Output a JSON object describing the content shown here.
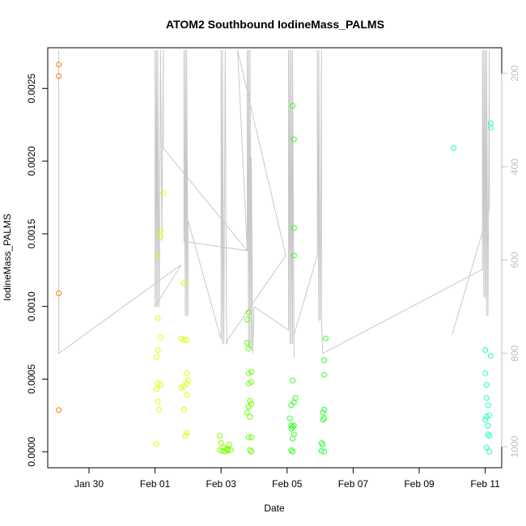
{
  "chart_data": {
    "type": "scatter",
    "title": "ATOM2 Southbound IodineMass_PALMS",
    "xlabel": "Date",
    "ylabel": "IodineMass_PALMS",
    "x_ticks": [
      "Jan 30",
      "Feb 01",
      "Feb 03",
      "Feb 05",
      "Feb 07",
      "Feb 09",
      "Feb 11"
    ],
    "y_ticks": [
      "0.0000",
      "0.0005",
      "0.0010",
      "0.0015",
      "0.0020",
      "0.0025"
    ],
    "y2_ticks": [
      "200",
      "400",
      "600",
      "800",
      "1000"
    ],
    "xlim": [
      "2017-01-28 18:00",
      "2017-02-11 12:00"
    ],
    "ylim": [
      -0.00011,
      0.00278
    ],
    "y2lim": [
      1045,
      145
    ],
    "grid": false,
    "points": [
      {
        "x": "2017-01-29 02:00",
        "y": 0.002664,
        "color": "#ff8000"
      },
      {
        "x": "2017-01-29 02:00",
        "y": 0.002585,
        "color": "#ff8000"
      },
      {
        "x": "2017-01-29 02:00",
        "y": 0.00109,
        "color": "#ff8000"
      },
      {
        "x": "2017-01-29 02:00",
        "y": 0.000287,
        "color": "#ff8000"
      },
      {
        "x": "2017-02-01 02:00",
        "y": 0.0007,
        "color": "#e6ff00"
      },
      {
        "x": "2017-02-01 01:00",
        "y": 0.00065,
        "color": "#e6ff00"
      },
      {
        "x": "2017-02-01 04:00",
        "y": 0.000785,
        "color": "#e6ff00"
      },
      {
        "x": "2017-02-01 02:00",
        "y": 0.00092,
        "color": "#e6ff00"
      },
      {
        "x": "2017-02-01 02:00",
        "y": 0.00135,
        "color": "#e6ff00"
      },
      {
        "x": "2017-02-01 04:00",
        "y": 0.00152,
        "color": "#e6ff00"
      },
      {
        "x": "2017-02-01 04:00",
        "y": 0.00148,
        "color": "#e6ff00"
      },
      {
        "x": "2017-02-01 06:00",
        "y": 0.00178,
        "color": "#e6ff00"
      },
      {
        "x": "2017-02-01 02:00",
        "y": 0.00047,
        "color": "#e6ff00"
      },
      {
        "x": "2017-02-01 04:00",
        "y": 0.00046,
        "color": "#e6ff00"
      },
      {
        "x": "2017-02-01 01:00",
        "y": 0.00043,
        "color": "#e6ff00"
      },
      {
        "x": "2017-02-01 02:00",
        "y": 0.000345,
        "color": "#e6ff00"
      },
      {
        "x": "2017-02-01 03:00",
        "y": 0.00029,
        "color": "#e6ff00"
      },
      {
        "x": "2017-02-01 01:00",
        "y": 5.5e-05,
        "color": "#e6ff00"
      },
      {
        "x": "2017-02-01 19:00",
        "y": 0.00078,
        "color": "#d4ff00"
      },
      {
        "x": "2017-02-01 21:00",
        "y": 0.00077,
        "color": "#d4ff00"
      },
      {
        "x": "2017-02-01 23:00",
        "y": 0.00077,
        "color": "#d4ff00"
      },
      {
        "x": "2017-02-01 21:00",
        "y": 0.00116,
        "color": "#d4ff00"
      },
      {
        "x": "2017-02-01 23:00",
        "y": 0.00054,
        "color": "#d4ff00"
      },
      {
        "x": "2017-02-02 00:00",
        "y": 0.00049,
        "color": "#d4ff00"
      },
      {
        "x": "2017-02-01 23:00",
        "y": 0.00047,
        "color": "#d4ff00"
      },
      {
        "x": "2017-02-01 21:00",
        "y": 0.00045,
        "color": "#d4ff00"
      },
      {
        "x": "2017-02-01 19:00",
        "y": 0.00044,
        "color": "#d4ff00"
      },
      {
        "x": "2017-02-01 23:00",
        "y": 0.00039,
        "color": "#d4ff00"
      },
      {
        "x": "2017-02-01 21:00",
        "y": 0.00029,
        "color": "#d4ff00"
      },
      {
        "x": "2017-02-01 23:00",
        "y": 0.00013,
        "color": "#d4ff00"
      },
      {
        "x": "2017-02-01 22:00",
        "y": 0.00011,
        "color": "#d4ff00"
      },
      {
        "x": "2017-02-02 23:00",
        "y": 0.00011,
        "color": "#80ff00"
      },
      {
        "x": "2017-02-03 00:00",
        "y": 6e-05,
        "color": "#80ff00"
      },
      {
        "x": "2017-02-03 06:00",
        "y": 5e-05,
        "color": "#80ff00"
      },
      {
        "x": "2017-02-03 02:00",
        "y": 3e-05,
        "color": "#80ff00"
      },
      {
        "x": "2017-02-03 04:00",
        "y": 2e-05,
        "color": "#80ff00"
      },
      {
        "x": "2017-02-03 05:00",
        "y": 1.5e-05,
        "color": "#80ff00"
      },
      {
        "x": "2017-02-02 23:00",
        "y": 1e-05,
        "color": "#80ff00"
      },
      {
        "x": "2017-02-03 01:00",
        "y": 5e-06,
        "color": "#80ff00"
      },
      {
        "x": "2017-02-03 03:00",
        "y": 0.0,
        "color": "#80ff00"
      },
      {
        "x": "2017-02-03 05:00",
        "y": 8e-06,
        "color": "#80ff00"
      },
      {
        "x": "2017-02-03 07:00",
        "y": 1.2e-05,
        "color": "#80ff00"
      },
      {
        "x": "2017-02-03 20:00",
        "y": 0.00096,
        "color": "#66ff00"
      },
      {
        "x": "2017-02-03 19:00",
        "y": 0.00091,
        "color": "#66ff00"
      },
      {
        "x": "2017-02-03 19:00",
        "y": 0.00075,
        "color": "#66ff00"
      },
      {
        "x": "2017-02-03 20:00",
        "y": 0.00071,
        "color": "#66ff00"
      },
      {
        "x": "2017-02-03 22:00",
        "y": 0.00055,
        "color": "#66ff00"
      },
      {
        "x": "2017-02-03 20:00",
        "y": 0.00054,
        "color": "#66ff00"
      },
      {
        "x": "2017-02-03 22:00",
        "y": 0.00048,
        "color": "#66ff00"
      },
      {
        "x": "2017-02-03 20:00",
        "y": 0.00047,
        "color": "#66ff00"
      },
      {
        "x": "2017-02-03 21:00",
        "y": 0.00035,
        "color": "#66ff00"
      },
      {
        "x": "2017-02-03 22:00",
        "y": 0.00033,
        "color": "#66ff00"
      },
      {
        "x": "2017-02-03 20:00",
        "y": 0.00031,
        "color": "#66ff00"
      },
      {
        "x": "2017-02-03 19:00",
        "y": 0.00027,
        "color": "#66ff00"
      },
      {
        "x": "2017-02-03 21:00",
        "y": 0.00024,
        "color": "#66ff00"
      },
      {
        "x": "2017-02-03 22:00",
        "y": 0.0001,
        "color": "#66ff00"
      },
      {
        "x": "2017-02-03 20:00",
        "y": 0.0001,
        "color": "#66ff00"
      },
      {
        "x": "2017-02-03 21:00",
        "y": 1e-05,
        "color": "#66ff00"
      },
      {
        "x": "2017-02-03 22:00",
        "y": 0.0,
        "color": "#66ff00"
      },
      {
        "x": "2017-02-05 04:00",
        "y": 0.00238,
        "color": "#33ff1a"
      },
      {
        "x": "2017-02-05 05:00",
        "y": 0.00215,
        "color": "#33ff1a"
      },
      {
        "x": "2017-02-05 05:00",
        "y": 0.00154,
        "color": "#33ff1a"
      },
      {
        "x": "2017-02-05 05:00",
        "y": 0.00135,
        "color": "#33ff1a"
      },
      {
        "x": "2017-02-05 04:00",
        "y": 0.00049,
        "color": "#33ff1a"
      },
      {
        "x": "2017-02-05 06:00",
        "y": 0.00037,
        "color": "#33ff1a"
      },
      {
        "x": "2017-02-05 05:00",
        "y": 0.00034,
        "color": "#33ff1a"
      },
      {
        "x": "2017-02-05 03:00",
        "y": 0.00032,
        "color": "#33ff1a"
      },
      {
        "x": "2017-02-05 02:00",
        "y": 0.00023,
        "color": "#33ff1a"
      },
      {
        "x": "2017-02-05 03:00",
        "y": 0.00018,
        "color": "#33ff1a"
      },
      {
        "x": "2017-02-05 05:00",
        "y": 0.00018,
        "color": "#33ff1a"
      },
      {
        "x": "2017-02-05 04:00",
        "y": 0.00017,
        "color": "#33ff1a"
      },
      {
        "x": "2017-02-05 03:00",
        "y": 0.00016,
        "color": "#33ff1a"
      },
      {
        "x": "2017-02-05 05:00",
        "y": 0.00012,
        "color": "#33ff1a"
      },
      {
        "x": "2017-02-05 04:00",
        "y": 9e-05,
        "color": "#33ff1a"
      },
      {
        "x": "2017-02-05 03:00",
        "y": 1e-05,
        "color": "#33ff1a"
      },
      {
        "x": "2017-02-05 04:00",
        "y": 0.0,
        "color": "#33ff1a"
      },
      {
        "x": "2017-02-06 04:00",
        "y": 0.00078,
        "color": "#2bff33"
      },
      {
        "x": "2017-02-06 03:00",
        "y": 0.00063,
        "color": "#2bff33"
      },
      {
        "x": "2017-02-06 03:00",
        "y": 0.00053,
        "color": "#2bff33"
      },
      {
        "x": "2017-02-06 03:00",
        "y": 0.00029,
        "color": "#2bff33"
      },
      {
        "x": "2017-02-06 02:00",
        "y": 0.00027,
        "color": "#2bff33"
      },
      {
        "x": "2017-02-06 03:00",
        "y": 0.00023,
        "color": "#2bff33"
      },
      {
        "x": "2017-02-06 02:00",
        "y": 0.00022,
        "color": "#2bff33"
      },
      {
        "x": "2017-02-06 01:00",
        "y": 6e-05,
        "color": "#2bff33"
      },
      {
        "x": "2017-02-06 02:00",
        "y": 5e-05,
        "color": "#2bff33"
      },
      {
        "x": "2017-02-06 01:00",
        "y": 5e-06,
        "color": "#2bff33"
      },
      {
        "x": "2017-02-06 03:00",
        "y": 0.0,
        "color": "#2bff33"
      },
      {
        "x": "2017-02-10 01:00",
        "y": 0.00209,
        "color": "#1affb3"
      },
      {
        "x": "2017-02-11 04:00",
        "y": 0.00226,
        "color": "#1affc8"
      },
      {
        "x": "2017-02-11 04:00",
        "y": 0.00223,
        "color": "#1affc8"
      },
      {
        "x": "2017-02-11 00:00",
        "y": 0.0007,
        "color": "#1affc8"
      },
      {
        "x": "2017-02-11 04:00",
        "y": 0.00066,
        "color": "#1affc8"
      },
      {
        "x": "2017-02-11 00:00",
        "y": 0.00054,
        "color": "#1affc8"
      },
      {
        "x": "2017-02-11 01:00",
        "y": 0.00046,
        "color": "#1affc8"
      },
      {
        "x": "2017-02-11 01:00",
        "y": 0.00037,
        "color": "#1affc8"
      },
      {
        "x": "2017-02-11 02:00",
        "y": 0.00032,
        "color": "#1affc8"
      },
      {
        "x": "2017-02-11 03:00",
        "y": 0.00025,
        "color": "#1affc8"
      },
      {
        "x": "2017-02-11 01:00",
        "y": 0.00024,
        "color": "#1affc8"
      },
      {
        "x": "2017-02-11 00:00",
        "y": 0.00022,
        "color": "#1affc8"
      },
      {
        "x": "2017-02-11 02:00",
        "y": 0.00018,
        "color": "#1affc8"
      },
      {
        "x": "2017-02-11 02:00",
        "y": 0.00012,
        "color": "#1affc8"
      },
      {
        "x": "2017-02-11 03:00",
        "y": 0.00011,
        "color": "#1affc8"
      },
      {
        "x": "2017-02-11 01:00",
        "y": 3e-05,
        "color": "#1affc8"
      },
      {
        "x": "2017-02-11 03:00",
        "y": 0.0,
        "color": "#1affc8"
      }
    ],
    "altitude_series": {
      "color": "#c8c8c8",
      "points": [
        [
          "2017-01-29 02:00",
          150
        ],
        [
          "2017-01-29 02:00",
          800
        ],
        [
          "2017-02-01 19:00",
          610
        ],
        [
          "2017-02-01 00:00",
          700
        ],
        [
          "2017-02-01 00:00",
          150
        ],
        [
          "2017-02-01 01:00",
          700
        ],
        [
          "2017-02-01 01:00",
          150
        ],
        [
          "2017-02-01 02:00",
          700
        ],
        [
          "2017-02-01 02:00",
          150
        ],
        [
          "2017-02-01 03:00",
          700
        ],
        [
          "2017-02-01 04:00",
          150
        ],
        [
          "2017-02-01 05:00",
          560
        ],
        [
          "2017-02-01 06:00",
          150
        ],
        [
          "2017-02-01 06:00",
          360
        ],
        [
          "2017-02-03 19:00",
          580
        ],
        [
          "2017-02-01 21:00",
          560
        ],
        [
          "2017-02-01 21:00",
          150
        ],
        [
          "2017-02-01 22:00",
          720
        ],
        [
          "2017-02-01 22:00",
          150
        ],
        [
          "2017-02-01 23:00",
          720
        ],
        [
          "2017-02-01 23:00",
          150
        ],
        [
          "2017-02-02 00:00",
          720
        ],
        [
          "2017-02-02 00:00",
          515
        ],
        [
          "2017-02-03 00:00",
          770
        ],
        [
          "2017-02-03 00:00",
          150
        ],
        [
          "2017-02-03 01:00",
          780
        ],
        [
          "2017-02-03 01:00",
          150
        ],
        [
          "2017-02-03 02:00",
          780
        ],
        [
          "2017-02-03 03:00",
          150
        ],
        [
          "2017-02-03 04:00",
          780
        ],
        [
          "2017-02-03 05:00",
          770
        ],
        [
          "2017-02-04 23:00",
          590
        ],
        [
          "2017-02-03 12:00",
          150
        ],
        [
          "2017-02-03 19:00",
          580
        ],
        [
          "2017-02-03 19:00",
          150
        ],
        [
          "2017-02-03 20:00",
          790
        ],
        [
          "2017-02-03 20:00",
          150
        ],
        [
          "2017-02-03 21:00",
          790
        ],
        [
          "2017-02-03 21:00",
          150
        ],
        [
          "2017-02-03 22:00",
          790
        ],
        [
          "2017-02-03 22:00",
          380
        ],
        [
          "2017-02-03 23:00",
          800
        ],
        [
          "2017-02-04 00:00",
          700
        ],
        [
          "2017-02-05 01:00",
          750
        ],
        [
          "2017-02-05 01:00",
          150
        ],
        [
          "2017-02-05 02:00",
          780
        ],
        [
          "2017-02-05 02:00",
          150
        ],
        [
          "2017-02-05 03:00",
          780
        ],
        [
          "2017-02-05 03:00",
          150
        ],
        [
          "2017-02-05 04:00",
          780
        ],
        [
          "2017-02-05 04:00",
          150
        ],
        [
          "2017-02-05 05:00",
          810
        ],
        [
          "2017-02-05 05:00",
          760
        ],
        [
          "2017-02-05 22:00",
          590
        ],
        [
          "2017-02-05 22:00",
          150
        ],
        [
          "2017-02-05 23:00",
          730
        ],
        [
          "2017-02-05 23:00",
          150
        ],
        [
          "2017-02-06 00:00",
          730
        ],
        [
          "2017-02-06 01:00",
          150
        ],
        [
          "2017-02-06 01:00",
          735
        ],
        [
          "2017-02-06 02:00",
          800
        ],
        [
          "2017-02-10 22:00",
          620
        ],
        [
          "2017-02-10 22:00",
          150
        ],
        [
          "2017-02-10 23:00",
          680
        ],
        [
          "2017-02-10 23:00",
          150
        ],
        [
          "2017-02-11 00:00",
          680
        ],
        [
          "2017-02-11 00:00",
          150
        ],
        [
          "2017-02-11 01:00",
          720
        ],
        [
          "2017-02-11 01:00",
          150
        ],
        [
          "2017-02-11 02:00",
          720
        ],
        [
          "2017-02-11 03:00",
          150
        ],
        [
          "2017-02-11 03:00",
          490
        ],
        [
          "2017-02-10 00:00",
          760
        ]
      ]
    }
  }
}
